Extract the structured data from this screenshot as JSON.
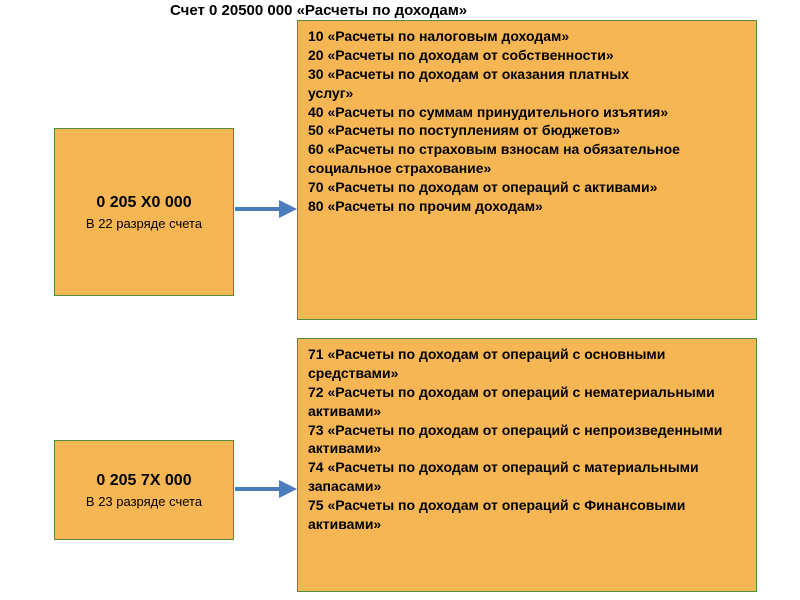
{
  "title": "Счет 0 20500 000 «Расчеты по доходам»",
  "colors": {
    "box_fill": "#f6b654",
    "box_border": "#5a8a3a",
    "arrow_line": "#4a7bbd",
    "arrow_head": "#4a7bbd",
    "text": "#000000",
    "background": "#ffffff"
  },
  "left1": {
    "code": "0 205 Х0 000",
    "sub": "В 22 разряде счета"
  },
  "left2": {
    "code": "0 205 7Х 000",
    "sub": "В 23 разряде счета"
  },
  "right1_items": [
    "10 «Расчеты по налоговым доходам»",
    "20 «Расчеты по доходам от собственности»",
    "30 «Расчеты по доходам от оказания платных",
    "услуг»",
    "40 «Расчеты по суммам принудительного изъятия»",
    "50 «Расчеты по поступлениям от бюджетов»",
    "60 «Расчеты по страховым взносам на обязательное социальное страхование»",
    "70 «Расчеты по доходам от операций с активами»",
    "80 «Расчеты по прочим доходам»"
  ],
  "right2_items": [
    "71 «Расчеты по доходам от операций с основными средствами»",
    "72 «Расчеты по доходам от операций с нематериальными активами»",
    "73 «Расчеты по доходам от операций с непроизведенными активами»",
    "74 «Расчеты по доходам от операций с материальными запасами»",
    "75 «Расчеты по доходам от операций с Финансовыми активами»"
  ],
  "arrow": {
    "line_width": 4,
    "head_width": 18,
    "head_height": 18
  }
}
